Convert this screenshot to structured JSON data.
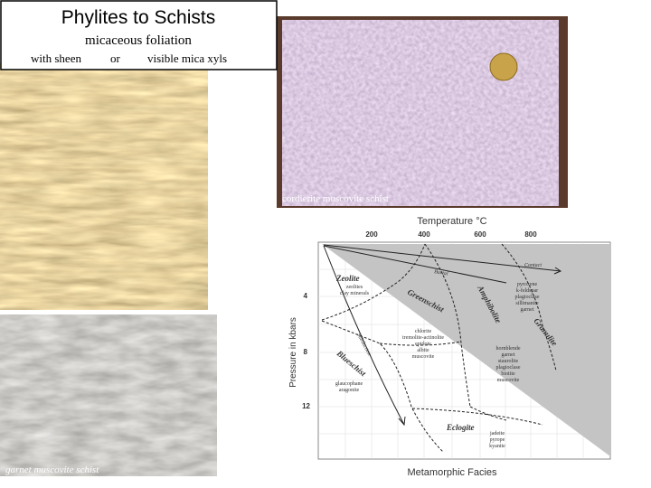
{
  "title": {
    "heading": "Phylites to Schists",
    "subheading": "micaceous foliation",
    "options": [
      "with sheen",
      "or",
      "visible mica xyls"
    ]
  },
  "photos": [
    {
      "caption": "cordierite muscovite schist"
    },
    {
      "caption": "garnet muscovite schist"
    }
  ],
  "diagram": {
    "x_title": "Temperature °C",
    "x_labels": [
      200,
      400,
      600,
      800
    ],
    "y_title": "Pressure in kbars",
    "y_labels": [
      4,
      8,
      12
    ],
    "footer": "Metamorphic Facies",
    "paths": [
      "Contact",
      "Burial",
      "Subduction"
    ],
    "facies": [
      {
        "name": "Zeolite",
        "minerals": [
          "zeolites",
          "clay minerals"
        ]
      },
      {
        "name": "Greenschist",
        "minerals": [
          "chlorite",
          "tremolite-actinolite",
          "epidote",
          "albite",
          "muscovite"
        ]
      },
      {
        "name": "Amphibolite",
        "minerals": [
          "hornblende",
          "garnet",
          "staurolite",
          "plagioclase",
          "biotite",
          "muscovite"
        ]
      },
      {
        "name": "Granulite",
        "minerals": [
          "pyroxene",
          "k-feldspar",
          "plagioclase",
          "sillimanite",
          "garnet"
        ]
      },
      {
        "name": "Blueschist",
        "minerals": [
          "glaucophane",
          "aragonite"
        ]
      },
      {
        "name": "Eclogite",
        "minerals": [
          "jadeite",
          "pyrope",
          "kyanite"
        ]
      }
    ]
  }
}
